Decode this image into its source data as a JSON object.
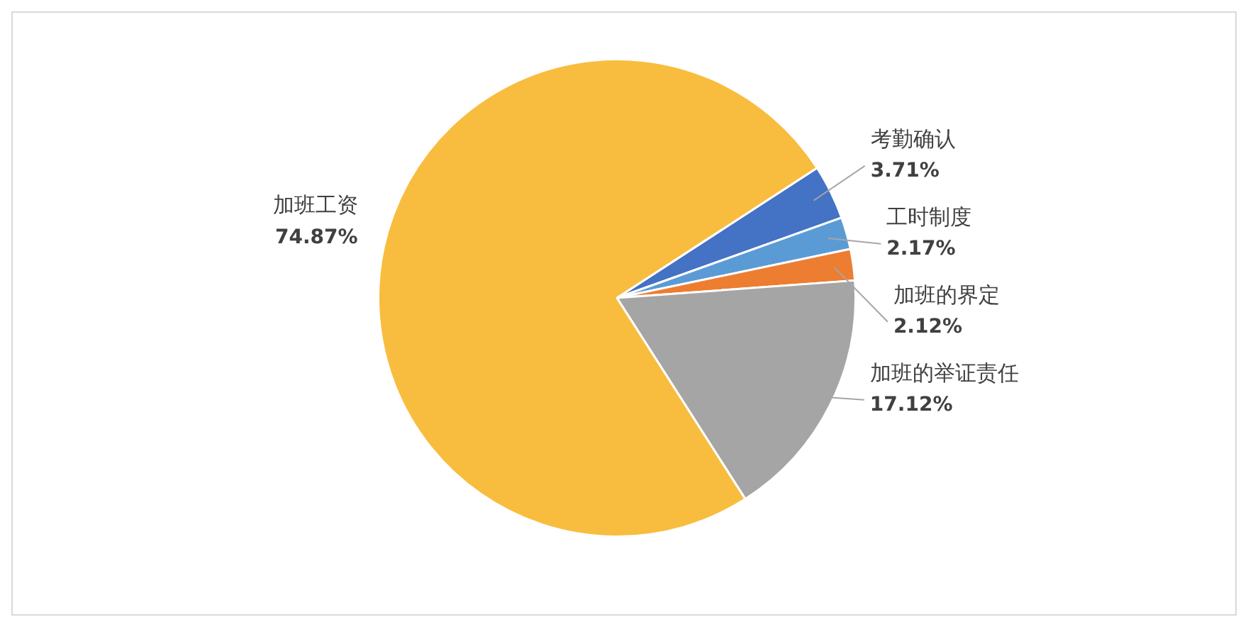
{
  "chart_data": {
    "type": "pie",
    "categories": [
      "考勤确认",
      "工时制度",
      "加班的界定",
      "加班的举证责任",
      "加班工资"
    ],
    "values": [
      3.71,
      2.17,
      2.12,
      17.12,
      74.87
    ],
    "colors": [
      "#4472c4",
      "#5b9bd5",
      "#ed7d31",
      "#a5a5a5",
      "#f8bd3e"
    ],
    "value_labels": [
      "3.71%",
      "2.17%",
      "2.12%",
      "17.12%",
      "74.87%"
    ],
    "legend": false
  }
}
